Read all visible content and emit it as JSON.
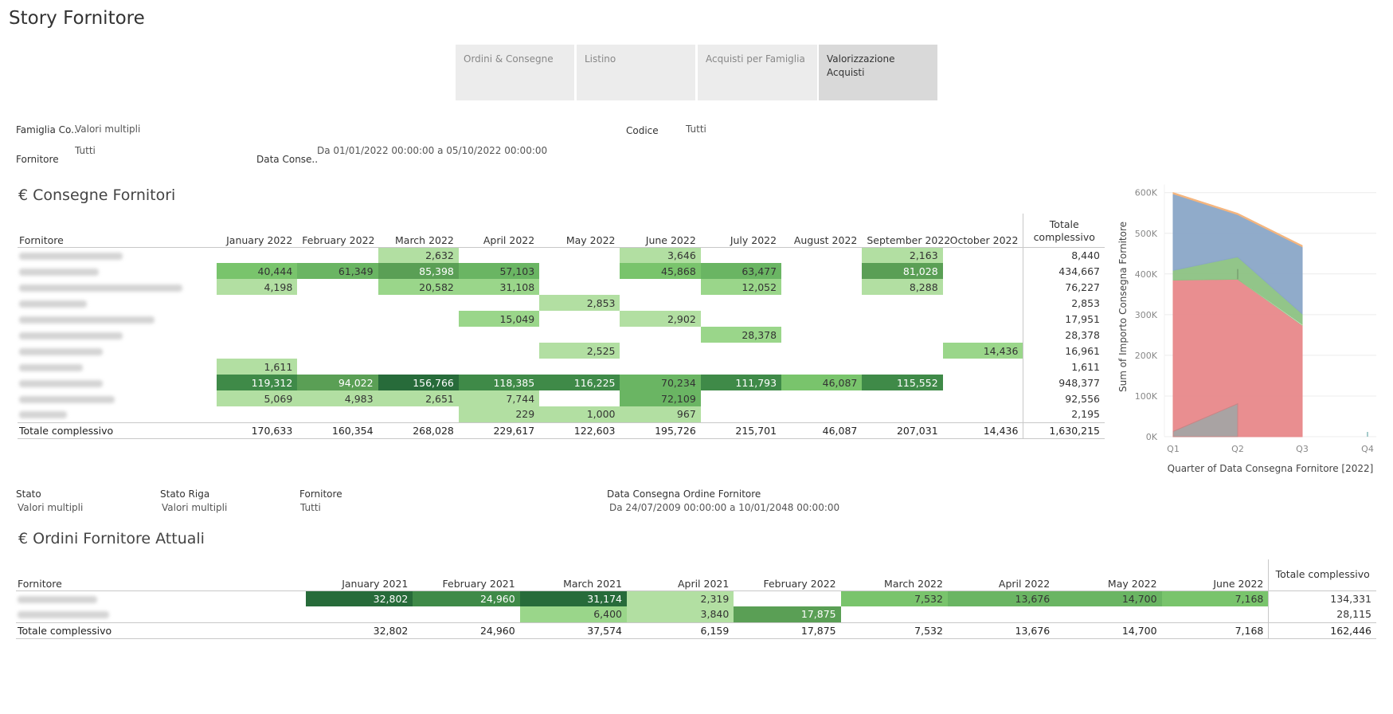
{
  "story_title": "Story Fornitore",
  "tabs": [
    {
      "label": "Ordini & Consegne",
      "active": false
    },
    {
      "label": "Listino",
      "active": false
    },
    {
      "label": "Acquisti per Famiglia",
      "active": false
    },
    {
      "label": "Valorizzazione Acquisti",
      "active": true
    }
  ],
  "filters_top": {
    "famiglia": {
      "label": "Famiglia Co..",
      "value": "Valori multipli"
    },
    "codice": {
      "label": "Codice",
      "value": "Tutti"
    },
    "fornitore": {
      "label": "Fornitore",
      "value": "Tutti"
    },
    "data": {
      "label": "Data Conse..",
      "value": "Da 01/01/2022 00:00:00 a 05/10/2022 00:00:00"
    }
  },
  "consegne": {
    "title": "€ Consegne Fornitori",
    "row_header": "Fornitore",
    "columns": [
      "January 2022",
      "February 2022",
      "March 2022",
      "April 2022",
      "May 2022",
      "June 2022",
      "July 2022",
      "August 2022",
      "September 2022",
      "October 2022"
    ],
    "total_header_1": "Totale",
    "total_header_2": "complessivo",
    "rows": [
      {
        "name_blur": 130,
        "cells": [
          "",
          "",
          "2,632",
          "",
          "",
          "3,646",
          "",
          "",
          "2,163",
          ""
        ],
        "total": "8,440"
      },
      {
        "name_blur": 100,
        "cells": [
          "40,444",
          "61,349",
          "85,398",
          "57,103",
          "",
          "45,868",
          "63,477",
          "",
          "81,028",
          ""
        ],
        "total": "434,667"
      },
      {
        "name_blur": 205,
        "cells": [
          "4,198",
          "",
          "20,582",
          "31,108",
          "",
          "",
          "12,052",
          "",
          "8,288",
          ""
        ],
        "total": "76,227"
      },
      {
        "name_blur": 85,
        "cells": [
          "",
          "",
          "",
          "",
          "2,853",
          "",
          "",
          "",
          "",
          ""
        ],
        "total": "2,853"
      },
      {
        "name_blur": 170,
        "cells": [
          "",
          "",
          "",
          "15,049",
          "",
          "2,902",
          "",
          "",
          "",
          ""
        ],
        "total": "17,951"
      },
      {
        "name_blur": 130,
        "cells": [
          "",
          "",
          "",
          "",
          "",
          "",
          "28,378",
          "",
          "",
          ""
        ],
        "total": "28,378"
      },
      {
        "name_blur": 105,
        "cells": [
          "",
          "",
          "",
          "",
          "2,525",
          "",
          "",
          "",
          "",
          "14,436"
        ],
        "total": "16,961"
      },
      {
        "name_blur": 80,
        "cells": [
          "1,611",
          "",
          "",
          "",
          "",
          "",
          "",
          "",
          "",
          ""
        ],
        "total": "1,611"
      },
      {
        "name_blur": 105,
        "cells": [
          "119,312",
          "94,022",
          "156,766",
          "118,385",
          "116,225",
          "70,234",
          "111,793",
          "46,087",
          "115,552",
          ""
        ],
        "total": "948,377"
      },
      {
        "name_blur": 120,
        "cells": [
          "5,069",
          "4,983",
          "2,651",
          "7,744",
          "",
          "72,109",
          "",
          "",
          "",
          ""
        ],
        "total": "92,556"
      },
      {
        "name_blur": 60,
        "cells": [
          "",
          "",
          "",
          "229",
          "1,000",
          "967",
          "",
          "",
          "",
          ""
        ],
        "total": "2,195"
      }
    ],
    "totals_label": "Totale complessivo",
    "totals": [
      "170,633",
      "160,354",
      "268,028",
      "229,617",
      "122,603",
      "195,726",
      "215,701",
      "46,087",
      "207,031",
      "14,436"
    ],
    "grand_total": "1,630,215"
  },
  "chart_data": {
    "type": "area",
    "stacked": true,
    "title": "",
    "xlabel": "Quarter of Data Consegna Fornitore [2022]",
    "ylabel": "Sum of Importo Consegna Fornitore",
    "categories": [
      "Q1",
      "Q2",
      "Q3",
      "Q4"
    ],
    "y_ticks": [
      "0K",
      "100K",
      "200K",
      "300K",
      "400K",
      "500K",
      "600K"
    ],
    "ylim": [
      0,
      620000
    ],
    "grid": true,
    "series": [
      {
        "name": "red",
        "color": "#e8888a",
        "values": [
          385000,
          387000,
          275000,
          null
        ]
      },
      {
        "name": "gray",
        "color": "#a9a3a3",
        "values": [
          13000,
          81000,
          null,
          null
        ]
      },
      {
        "name": "green",
        "color": "#8cc283",
        "values": [
          24000,
          55000,
          28000,
          null
        ]
      },
      {
        "name": "blue",
        "color": "#8aa6c7",
        "values": [
          188000,
          104000,
          165000,
          null
        ]
      },
      {
        "name": "orange",
        "color": "#f5b57d",
        "values": [
          3000,
          3000,
          3000,
          null
        ]
      }
    ]
  },
  "filters_bottom": {
    "stato": {
      "label": "Stato",
      "value": "Valori multipli"
    },
    "stato_riga": {
      "label": "Stato Riga",
      "value": "Valori multipli"
    },
    "fornitore": {
      "label": "Fornitore",
      "value": "Tutti"
    },
    "data": {
      "label": "Data Consegna Ordine Fornitore",
      "value": "Da 24/07/2009 00:00:00 a 10/01/2048 00:00:00"
    }
  },
  "ordini": {
    "title": "€ Ordini Fornitore Attuali",
    "row_header": "Fornitore",
    "columns": [
      "January 2021",
      "February 2021",
      "March 2021",
      "April 2021",
      "February 2022",
      "March 2022",
      "April 2022",
      "May 2022",
      "June 2022"
    ],
    "total_header": "Totale complessivo",
    "rows": [
      {
        "name_blur": 100,
        "cells": [
          "32,802",
          "24,960",
          "31,174",
          "2,319",
          "",
          "7,532",
          "13,676",
          "14,700",
          "7,168"
        ],
        "total": "134,331"
      },
      {
        "name_blur": 115,
        "cells": [
          "",
          "",
          "6,400",
          "3,840",
          "17,875",
          "",
          "",
          "",
          ""
        ],
        "total": "28,115"
      }
    ],
    "totals_label": "Totale complessivo",
    "totals": [
      "32,802",
      "24,960",
      "37,574",
      "6,159",
      "17,875",
      "7,532",
      "13,676",
      "14,700",
      "7,168"
    ],
    "grand_total": "162,446"
  },
  "colors": {
    "green_scale": [
      "#b2dfa2",
      "#9ad68a",
      "#79c46c",
      "#6ab563",
      "#5a9f55",
      "#3f8a48",
      "#276b3a"
    ]
  }
}
